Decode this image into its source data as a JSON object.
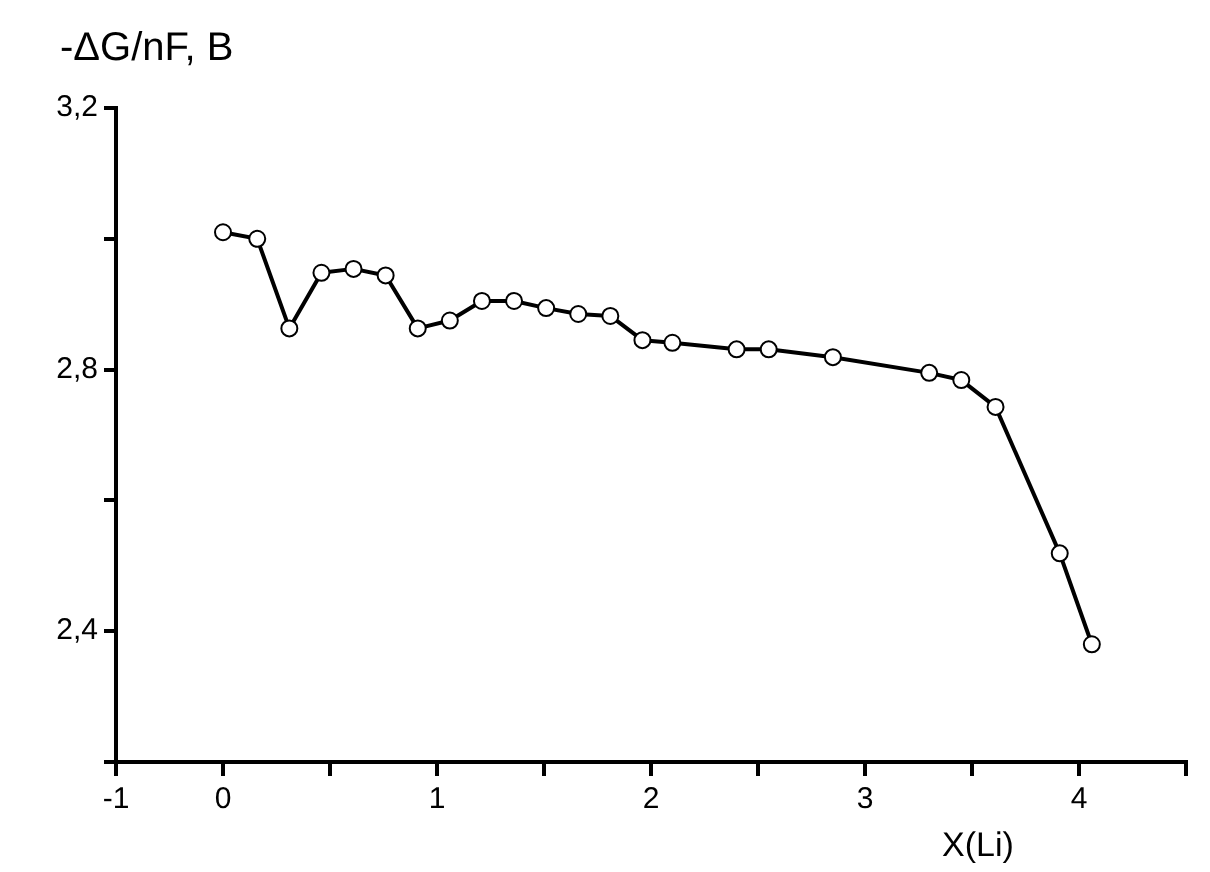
{
  "chart_data": {
    "type": "line",
    "ylabel": "-ΔG/nF, B",
    "xlabel": "X(Li)",
    "x": [
      0,
      0.16,
      0.31,
      0.46,
      0.61,
      0.76,
      0.91,
      1.06,
      1.21,
      1.36,
      1.51,
      1.66,
      1.81,
      1.96,
      2.1,
      2.4,
      2.55,
      2.85,
      3.3,
      3.45,
      3.61,
      3.91,
      4.06
    ],
    "series": [
      {
        "color": "#000000",
        "values": [
          3.01,
          3.0,
          2.863,
          2.948,
          2.954,
          2.944,
          2.863,
          2.875,
          2.905,
          2.905,
          2.894,
          2.885,
          2.882,
          2.845,
          2.841,
          2.831,
          2.831,
          2.819,
          2.795,
          2.784,
          2.743,
          2.519,
          2.38
        ]
      }
    ],
    "xlim": [
      -0.5,
      4.5
    ],
    "xticks": [
      {
        "value": -0.5,
        "label": "-1"
      },
      0,
      {
        "value": 0.5,
        "label": null
      },
      1,
      {
        "value": 1.5,
        "label": null
      },
      2,
      {
        "value": 2.5,
        "label": null
      },
      3,
      {
        "value": 3.5,
        "label": null
      },
      4,
      {
        "value": 4.5,
        "label": null
      }
    ],
    "ylim": [
      2.2,
      3.2
    ],
    "yticks": [
      {
        "value": 2.2,
        "label": null
      },
      {
        "value": 2.4,
        "label": "2,4"
      },
      {
        "value": 2.6,
        "label": null
      },
      {
        "value": 2.8,
        "label": "2,8"
      },
      {
        "value": 3.0,
        "label": null
      },
      {
        "value": 3.2,
        "label": "3,2"
      }
    ],
    "marker": "circle",
    "line_style": "solid",
    "grid": false,
    "legend": false
  }
}
